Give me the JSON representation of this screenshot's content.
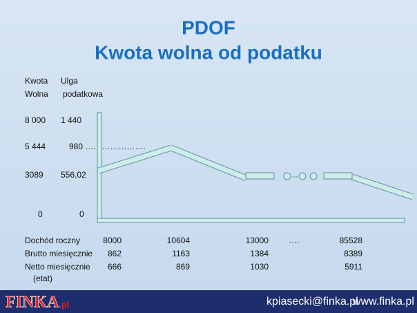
{
  "title": {
    "line1": "PDOF",
    "line2": "Kwota wolna od podatku"
  },
  "scale_labels": {
    "headers": [
      [
        "Kwota",
        "Ulga"
      ],
      [
        "Wolna",
        "podatkowa"
      ]
    ],
    "rows": [
      [
        "8 000",
        "1 440"
      ],
      [
        "5 444",
        "980 …………………."
      ],
      [
        "3089",
        "556,02"
      ],
      [
        "0",
        "0"
      ]
    ]
  },
  "chart_dots": "…",
  "table": {
    "rows": [
      [
        "Dochód roczny",
        "8000",
        "10604",
        "13000",
        "….",
        "85528"
      ],
      [
        "Brutto miesięcznie",
        "862",
        "1163",
        "1384",
        "8389"
      ],
      [
        "Netto miesięcznie",
        "666",
        "869",
        "1030",
        "5911"
      ]
    ],
    "note": "(etat)"
  },
  "footer": {
    "logo": "FINKA",
    "logo_suffix": ".pl",
    "email": "kpiasecki@finka.pl",
    "website": "www.finka.pl"
  }
}
